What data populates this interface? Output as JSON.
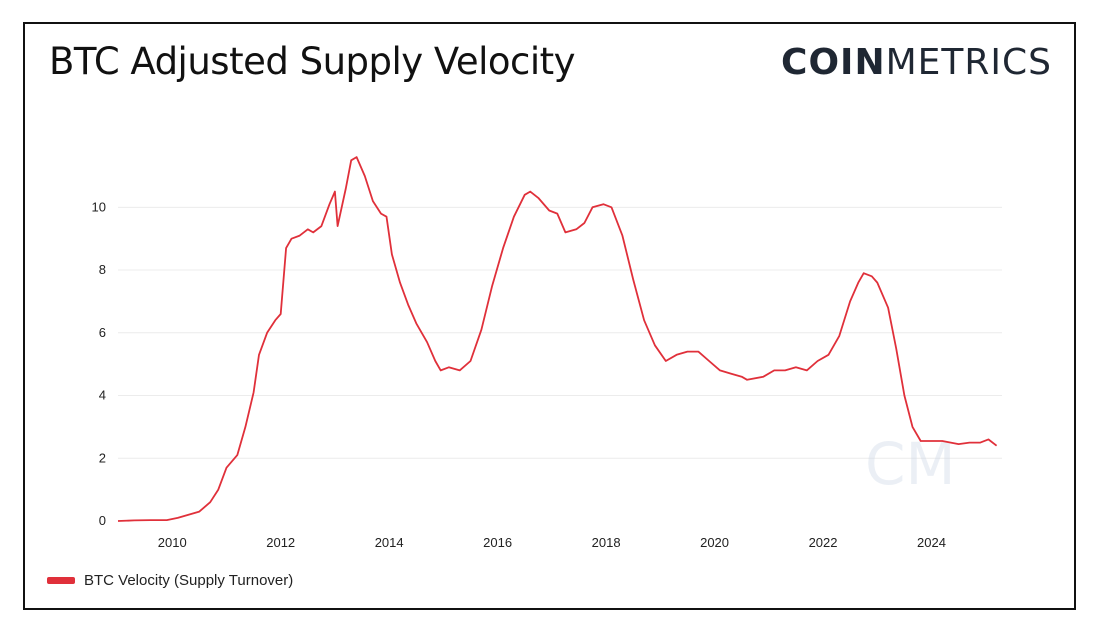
{
  "header": {
    "title": "BTC Adjusted Supply Velocity",
    "logo_bold": "COIN",
    "logo_light": "METRICS"
  },
  "watermark": "CM",
  "colors": {
    "series": "#e0303a",
    "grid": "#ececec",
    "text": "#222222"
  },
  "chart_data": {
    "type": "line",
    "title": "BTC Adjusted Supply Velocity",
    "xlabel": "",
    "ylabel": "",
    "xlim": [
      2009.0,
      2025.3
    ],
    "ylim": [
      0,
      11.7
    ],
    "x_ticks": [
      2010,
      2012,
      2014,
      2016,
      2018,
      2020,
      2022,
      2024
    ],
    "y_ticks": [
      0,
      2,
      4,
      6,
      8,
      10
    ],
    "grid": true,
    "legend_position": "bottom-left",
    "series": [
      {
        "name": "BTC Velocity (Supply Turnover)",
        "x": [
          2009.0,
          2009.3,
          2009.6,
          2009.9,
          2010.1,
          2010.3,
          2010.5,
          2010.7,
          2010.85,
          2011.0,
          2011.2,
          2011.35,
          2011.5,
          2011.6,
          2011.75,
          2011.9,
          2012.0,
          2012.1,
          2012.2,
          2012.35,
          2012.5,
          2012.6,
          2012.75,
          2012.9,
          2013.0,
          2013.05,
          2013.2,
          2013.3,
          2013.4,
          2013.55,
          2013.7,
          2013.85,
          2013.95,
          2014.05,
          2014.2,
          2014.35,
          2014.5,
          2014.7,
          2014.85,
          2014.95,
          2015.1,
          2015.3,
          2015.5,
          2015.7,
          2015.9,
          2016.1,
          2016.3,
          2016.5,
          2016.6,
          2016.75,
          2016.95,
          2017.1,
          2017.25,
          2017.45,
          2017.6,
          2017.75,
          2017.95,
          2018.1,
          2018.3,
          2018.5,
          2018.7,
          2018.9,
          2019.1,
          2019.3,
          2019.5,
          2019.7,
          2019.9,
          2020.1,
          2020.3,
          2020.5,
          2020.6,
          2020.9,
          2021.1,
          2021.3,
          2021.5,
          2021.7,
          2021.9,
          2022.1,
          2022.3,
          2022.5,
          2022.65,
          2022.75,
          2022.9,
          2023.0,
          2023.2,
          2023.35,
          2023.5,
          2023.65,
          2023.8,
          2023.95,
          2024.2,
          2024.5,
          2024.7,
          2024.9,
          2025.05,
          2025.2
        ],
        "values": [
          0.0,
          0.02,
          0.03,
          0.03,
          0.1,
          0.2,
          0.3,
          0.6,
          1.0,
          1.7,
          2.1,
          3.0,
          4.1,
          5.3,
          6.0,
          6.4,
          6.6,
          8.7,
          9.0,
          9.1,
          9.3,
          9.2,
          9.4,
          10.1,
          10.5,
          9.4,
          10.6,
          11.5,
          11.6,
          11.0,
          10.2,
          9.8,
          9.7,
          8.5,
          7.6,
          6.9,
          6.3,
          5.7,
          5.1,
          4.8,
          4.9,
          4.8,
          5.1,
          6.1,
          7.5,
          8.7,
          9.7,
          10.4,
          10.5,
          10.3,
          9.9,
          9.8,
          9.2,
          9.3,
          9.5,
          10.0,
          10.1,
          10.0,
          9.1,
          7.7,
          6.4,
          5.6,
          5.1,
          5.3,
          5.4,
          5.4,
          5.1,
          4.8,
          4.7,
          4.6,
          4.5,
          4.6,
          4.8,
          4.8,
          4.9,
          4.8,
          5.1,
          5.3,
          5.9,
          7.0,
          7.6,
          7.9,
          7.8,
          7.6,
          6.8,
          5.5,
          4.0,
          3.0,
          2.55,
          2.55,
          2.55,
          2.45,
          2.5,
          2.5,
          2.6,
          2.4
        ]
      }
    ]
  }
}
